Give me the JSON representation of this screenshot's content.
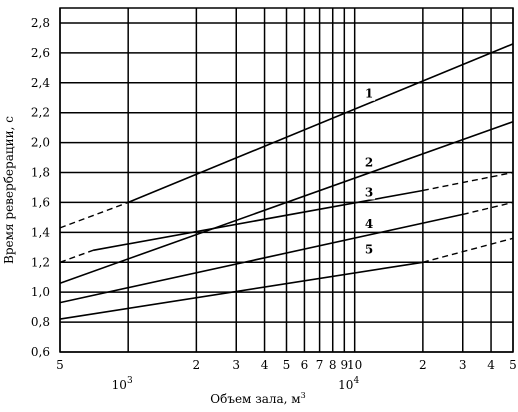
{
  "chart_data": {
    "type": "line",
    "title": "",
    "xlabel": "Объем зала, м",
    "xlabel_unit_superscript": "3",
    "ylabel": "Время реверберации, с",
    "x_scale": "log",
    "xlim": [
      500,
      50000
    ],
    "ylim": [
      0.6,
      2.9
    ],
    "grid": true,
    "x_ticks": [
      {
        "value": 500,
        "label": "5"
      },
      {
        "value": 2000,
        "label": "2"
      },
      {
        "value": 3000,
        "label": "3"
      },
      {
        "value": 4000,
        "label": "4"
      },
      {
        "value": 5000,
        "label": "5"
      },
      {
        "value": 6000,
        "label": "6"
      },
      {
        "value": 7000,
        "label": "7"
      },
      {
        "value": 8000,
        "label": "8"
      },
      {
        "value": 9000,
        "label": "9"
      },
      {
        "value": 10000,
        "label": "10"
      },
      {
        "value": 20000,
        "label": "2"
      },
      {
        "value": 30000,
        "label": "3"
      },
      {
        "value": 40000,
        "label": "4"
      },
      {
        "value": 50000,
        "label": "5"
      }
    ],
    "x_major_labels": [
      {
        "value": 1000,
        "base": "10",
        "exp": "3"
      },
      {
        "value": 10000,
        "base": "10",
        "exp": "4"
      }
    ],
    "x_gridlines": [
      500,
      1000,
      2000,
      3000,
      4000,
      5000,
      6000,
      7000,
      8000,
      9000,
      10000,
      20000,
      30000,
      40000,
      50000
    ],
    "y_ticks": [
      {
        "value": 0.6,
        "label": "0,6"
      },
      {
        "value": 0.8,
        "label": "0,8"
      },
      {
        "value": 1.0,
        "label": "1,0"
      },
      {
        "value": 1.2,
        "label": "1,2"
      },
      {
        "value": 1.4,
        "label": "1,4"
      },
      {
        "value": 1.6,
        "label": "1,6"
      },
      {
        "value": 1.8,
        "label": "1,8"
      },
      {
        "value": 2.0,
        "label": "2,0"
      },
      {
        "value": 2.2,
        "label": "2,2"
      },
      {
        "value": 2.4,
        "label": "2,4"
      },
      {
        "value": 2.6,
        "label": "2,6"
      },
      {
        "value": 2.8,
        "label": "2,8"
      }
    ],
    "series": [
      {
        "name": "1",
        "solid": {
          "x": [
            1000,
            50000
          ],
          "y": [
            1.6,
            2.66
          ]
        },
        "dashed": {
          "x": [
            500,
            1000
          ],
          "y": [
            1.43,
            1.6
          ]
        },
        "label_at": {
          "x": 11000,
          "y": 2.3
        }
      },
      {
        "name": "2",
        "solid": {
          "x": [
            500,
            50000
          ],
          "y": [
            1.06,
            2.14
          ]
        },
        "dashed": null,
        "label_at": {
          "x": 11000,
          "y": 1.84
        }
      },
      {
        "name": "3",
        "solid": {
          "x": [
            700,
            20000
          ],
          "y": [
            1.28,
            1.68
          ]
        },
        "dashed": {
          "x": [
            500,
            700,
            20000,
            50000
          ],
          "y": [
            1.2,
            1.28,
            1.68,
            1.8
          ]
        },
        "label_at": {
          "x": 11000,
          "y": 1.64
        }
      },
      {
        "name": "4",
        "solid": {
          "x": [
            500,
            30000
          ],
          "y": [
            0.93,
            1.52
          ]
        },
        "dashed": {
          "x": [
            30000,
            50000
          ],
          "y": [
            1.52,
            1.6
          ]
        },
        "label_at": {
          "x": 11000,
          "y": 1.43
        }
      },
      {
        "name": "5",
        "solid": {
          "x": [
            500,
            20000
          ],
          "y": [
            0.82,
            1.2
          ]
        },
        "dashed": {
          "x": [
            20000,
            50000
          ],
          "y": [
            1.2,
            1.36
          ]
        },
        "label_at": {
          "x": 11000,
          "y": 1.26
        }
      }
    ]
  }
}
